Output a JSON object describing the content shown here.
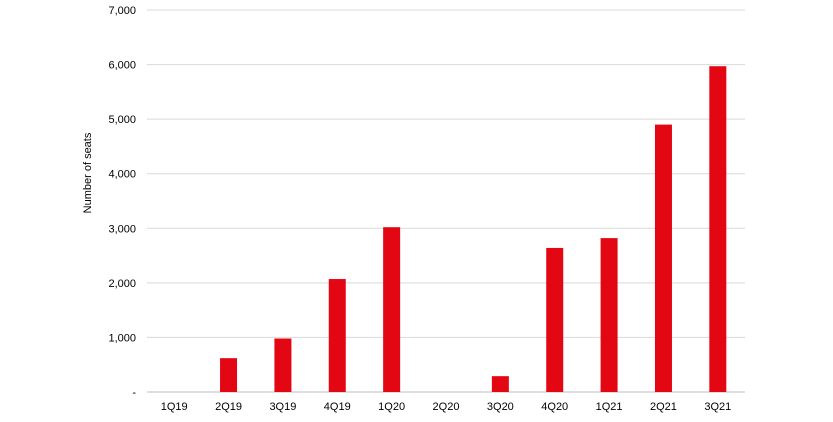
{
  "chart_data": {
    "type": "bar",
    "title": "",
    "xlabel": "",
    "ylabel": "Number of seats",
    "categories": [
      "1Q19",
      "2Q19",
      "3Q19",
      "4Q19",
      "1Q20",
      "2Q20",
      "3Q20",
      "4Q20",
      "1Q21",
      "2Q21",
      "3Q21"
    ],
    "values": [
      0,
      620,
      980,
      2070,
      3020,
      0,
      290,
      2640,
      2820,
      4900,
      5970
    ],
    "ylim": [
      0,
      7000
    ],
    "yticks": [
      0,
      1000,
      2000,
      3000,
      4000,
      5000,
      6000,
      7000
    ],
    "ytick_labels": [
      "-",
      "1,000",
      "2,000",
      "3,000",
      "4,000",
      "5,000",
      "6,000",
      "7,000"
    ],
    "grid": true,
    "bar_color": "#e30613",
    "gridline_color": "#d9d9d9"
  }
}
